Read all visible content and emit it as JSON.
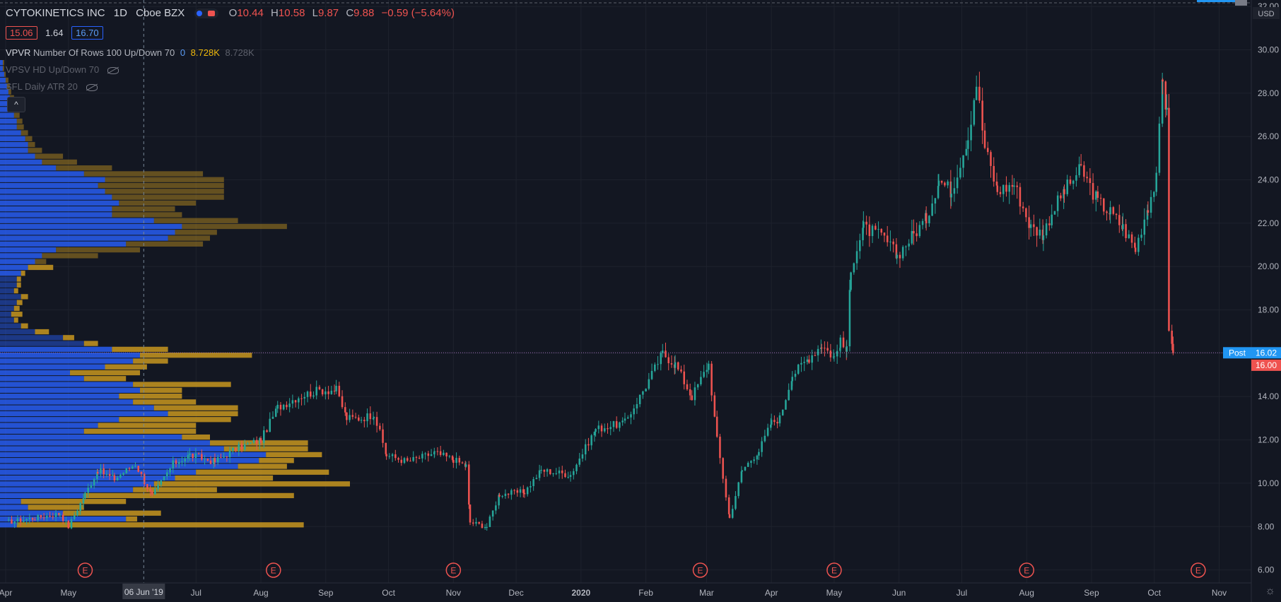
{
  "header": {
    "symbol": "CYTOKINETICS INC",
    "interval": "1D",
    "exchange": "Cboe BZX",
    "o_label": "O",
    "o_value": "10.44",
    "h_label": "H",
    "h_value": "10.58",
    "l_label": "L",
    "l_value": "9.87",
    "c_label": "C",
    "c_value": "9.88",
    "change": "−0.59 (−5.64%)"
  },
  "quote": {
    "bid": "15.06",
    "spread": "1.64",
    "ask": "16.70"
  },
  "indicators": [
    {
      "name": "VPVR",
      "params": "Number Of Rows 100 Up/Down 70",
      "v0": "0",
      "v1": "8.728K",
      "v2": "8.728K"
    },
    {
      "name": "VPSV HD Up/Down 70"
    },
    {
      "name": "SFL Daily ATR 20"
    }
  ],
  "collapse_glyph": "^",
  "settings_glyph": "☼",
  "colors": {
    "bg": "#131722",
    "up": "#26a69a",
    "down": "#ef5350",
    "grid": "#1e222d",
    "vp_up": "#2962ff",
    "vp_down": "#c8961e",
    "post": "#2196f3"
  },
  "chart_data": {
    "type": "candlestick",
    "currency": "USD",
    "y_ticks": [
      6,
      8,
      10,
      12,
      14,
      16,
      18,
      20,
      22,
      24,
      26,
      28,
      30,
      32
    ],
    "ylim": [
      5.4,
      32.3
    ],
    "x_ticks": [
      {
        "label": "Apr",
        "t": 0
      },
      {
        "label": "May",
        "t": 30
      },
      {
        "label": "Jul",
        "t": 91
      },
      {
        "label": "Aug",
        "t": 122
      },
      {
        "label": "Sep",
        "t": 153
      },
      {
        "label": "Oct",
        "t": 183
      },
      {
        "label": "Nov",
        "t": 214
      },
      {
        "label": "Dec",
        "t": 244
      },
      {
        "label": "2020",
        "t": 275
      },
      {
        "label": "Feb",
        "t": 306
      },
      {
        "label": "Mar",
        "t": 335
      },
      {
        "label": "Apr",
        "t": 366
      },
      {
        "label": "May",
        "t": 396
      },
      {
        "label": "Jun",
        "t": 427
      },
      {
        "label": "Jul",
        "t": 457
      },
      {
        "label": "Aug",
        "t": 488
      },
      {
        "label": "Sep",
        "t": 519
      },
      {
        "label": "Oct",
        "t": 549
      },
      {
        "label": "Nov",
        "t": 580
      }
    ],
    "x_range": [
      0,
      592
    ],
    "crosshair": {
      "date_label": "06 Jun '19",
      "t": 66
    },
    "price_labels": [
      {
        "text": "Post",
        "value": "16.02",
        "price": 16.02
      },
      {
        "text": "",
        "value": "16.00",
        "price": 16.0
      }
    ],
    "earnings": {
      "marker": "E",
      "t": [
        38,
        128,
        214,
        332,
        396,
        488,
        570
      ]
    },
    "anchors": [
      [
        0,
        8.2
      ],
      [
        14,
        8.4
      ],
      [
        26,
        8.6
      ],
      [
        30,
        8.0
      ],
      [
        38,
        9.5
      ],
      [
        44,
        10.6
      ],
      [
        52,
        10.2
      ],
      [
        62,
        10.9
      ],
      [
        70,
        9.4
      ],
      [
        80,
        10.9
      ],
      [
        88,
        11.3
      ],
      [
        100,
        11.0
      ],
      [
        110,
        11.6
      ],
      [
        122,
        12.0
      ],
      [
        130,
        13.5
      ],
      [
        140,
        14.0
      ],
      [
        150,
        14.3
      ],
      [
        158,
        14.3
      ],
      [
        163,
        13.0
      ],
      [
        170,
        13.0
      ],
      [
        176,
        13.2
      ],
      [
        182,
        11.3
      ],
      [
        192,
        11.0
      ],
      [
        205,
        11.4
      ],
      [
        214,
        11.1
      ],
      [
        220,
        10.8
      ],
      [
        222,
        8.2
      ],
      [
        230,
        8.0
      ],
      [
        236,
        9.5
      ],
      [
        248,
        9.6
      ],
      [
        256,
        10.6
      ],
      [
        270,
        10.4
      ],
      [
        282,
        12.5
      ],
      [
        296,
        12.8
      ],
      [
        306,
        14.5
      ],
      [
        314,
        16.0
      ],
      [
        320,
        15.5
      ],
      [
        328,
        14.0
      ],
      [
        336,
        15.5
      ],
      [
        340,
        12.0
      ],
      [
        346,
        8.4
      ],
      [
        352,
        10.6
      ],
      [
        360,
        11.5
      ],
      [
        366,
        12.8
      ],
      [
        370,
        13.0
      ],
      [
        376,
        15.0
      ],
      [
        384,
        15.8
      ],
      [
        390,
        16.4
      ],
      [
        396,
        15.8
      ],
      [
        399,
        16.5
      ],
      [
        402,
        16.1
      ],
      [
        404,
        20.0
      ],
      [
        410,
        21.8
      ],
      [
        420,
        21.3
      ],
      [
        426,
        20.5
      ],
      [
        434,
        21.5
      ],
      [
        440,
        22.2
      ],
      [
        446,
        24.0
      ],
      [
        452,
        23.5
      ],
      [
        460,
        26.0
      ],
      [
        464,
        28.5
      ],
      [
        468,
        25.5
      ],
      [
        474,
        23.5
      ],
      [
        482,
        23.8
      ],
      [
        490,
        21.8
      ],
      [
        496,
        21.5
      ],
      [
        500,
        22.5
      ],
      [
        506,
        23.5
      ],
      [
        514,
        24.5
      ],
      [
        522,
        23.0
      ],
      [
        528,
        22.5
      ],
      [
        534,
        21.8
      ],
      [
        540,
        20.8
      ],
      [
        546,
        22.8
      ],
      [
        550,
        24.0
      ],
      [
        553,
        28.8
      ],
      [
        555,
        27.0
      ],
      [
        556,
        17.2
      ],
      [
        558,
        16.0
      ]
    ],
    "volume_profile_max_k": 8.728,
    "volume_profile": [
      [
        8.08,
        12,
        205
      ],
      [
        8.35,
        90,
        8
      ],
      [
        8.62,
        45,
        70
      ],
      [
        8.89,
        20,
        40
      ],
      [
        9.16,
        15,
        75
      ],
      [
        9.43,
        60,
        150
      ],
      [
        9.7,
        95,
        60
      ],
      [
        9.97,
        110,
        140
      ],
      [
        10.24,
        125,
        70
      ],
      [
        10.51,
        140,
        95
      ],
      [
        10.78,
        170,
        35
      ],
      [
        11.05,
        185,
        25
      ],
      [
        11.32,
        190,
        40
      ],
      [
        11.59,
        160,
        60
      ],
      [
        11.86,
        150,
        70
      ],
      [
        12.13,
        130,
        20
      ],
      [
        12.4,
        60,
        80
      ],
      [
        12.67,
        70,
        70
      ],
      [
        12.94,
        85,
        80
      ],
      [
        13.21,
        120,
        50
      ],
      [
        13.48,
        110,
        60
      ],
      [
        13.75,
        95,
        45
      ],
      [
        14.02,
        85,
        45
      ],
      [
        14.29,
        100,
        30
      ],
      [
        14.56,
        95,
        70
      ],
      [
        14.83,
        60,
        30
      ],
      [
        15.1,
        50,
        50
      ],
      [
        15.37,
        75,
        30
      ],
      [
        15.64,
        95,
        25
      ],
      [
        15.91,
        100,
        80
      ],
      [
        16.18,
        80,
        40
      ],
      [
        16.45,
        60,
        10
      ],
      [
        16.72,
        45,
        8
      ],
      [
        16.99,
        25,
        10
      ],
      [
        17.26,
        15,
        5
      ],
      [
        17.53,
        10,
        3
      ],
      [
        17.8,
        8,
        8
      ],
      [
        18.07,
        10,
        4
      ],
      [
        18.34,
        12,
        4
      ],
      [
        18.61,
        15,
        5
      ],
      [
        18.88,
        10,
        3
      ],
      [
        19.15,
        12,
        3
      ],
      [
        19.42,
        12,
        3
      ],
      [
        19.69,
        15,
        3
      ],
      [
        19.96,
        20,
        18
      ],
      [
        20.23,
        25,
        8
      ],
      [
        20.5,
        30,
        40
      ],
      [
        20.77,
        40,
        60
      ],
      [
        21.04,
        90,
        55
      ],
      [
        21.31,
        120,
        30
      ],
      [
        21.58,
        125,
        30
      ],
      [
        21.85,
        130,
        75
      ],
      [
        22.12,
        110,
        60
      ],
      [
        22.39,
        80,
        50
      ],
      [
        22.66,
        80,
        45
      ],
      [
        22.93,
        85,
        55
      ],
      [
        23.2,
        80,
        80
      ],
      [
        23.47,
        75,
        85
      ],
      [
        23.74,
        70,
        90
      ],
      [
        24.01,
        75,
        85
      ],
      [
        24.28,
        60,
        85
      ],
      [
        24.55,
        40,
        40
      ],
      [
        24.82,
        30,
        25
      ],
      [
        25.09,
        25,
        20
      ],
      [
        25.36,
        20,
        10
      ],
      [
        25.63,
        20,
        5
      ],
      [
        25.9,
        18,
        5
      ],
      [
        26.17,
        15,
        5
      ],
      [
        26.44,
        12,
        5
      ],
      [
        26.71,
        12,
        4
      ],
      [
        26.98,
        10,
        4
      ],
      [
        27.25,
        9,
        4
      ],
      [
        27.52,
        8,
        3
      ],
      [
        27.79,
        7,
        3
      ],
      [
        28.06,
        6,
        2
      ],
      [
        28.33,
        5,
        2
      ],
      [
        28.6,
        4,
        2
      ],
      [
        28.87,
        3,
        1
      ],
      [
        29.14,
        2,
        1
      ],
      [
        29.41,
        2,
        1
      ]
    ]
  }
}
